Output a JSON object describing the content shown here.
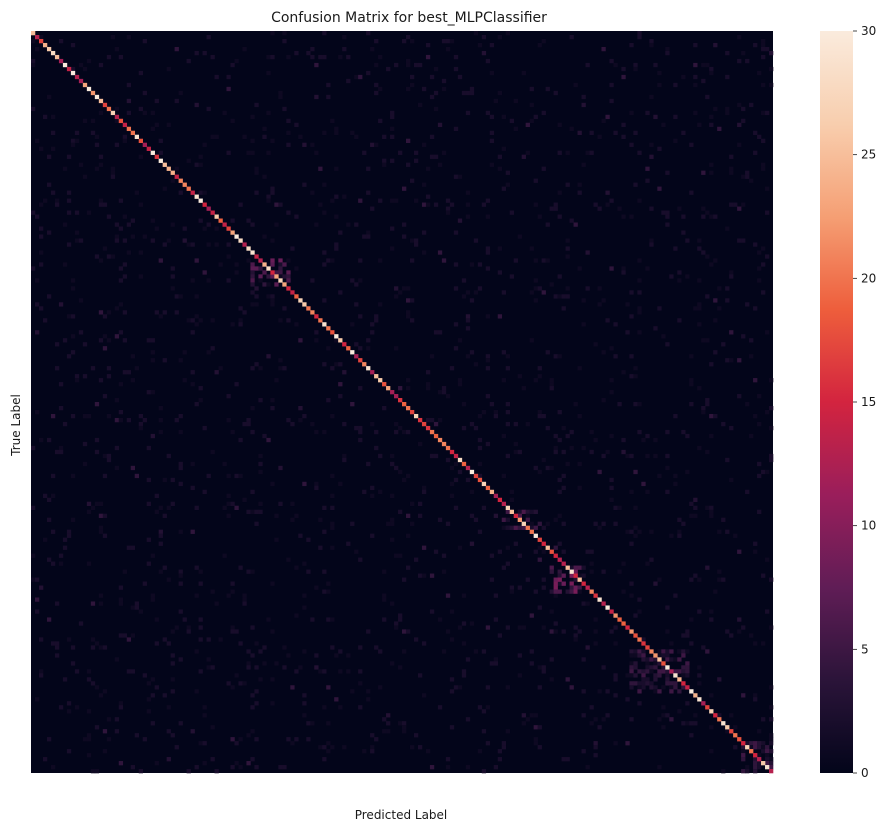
{
  "chart_data": {
    "type": "heatmap",
    "title": "Confusion Matrix for best_MLPClassifier",
    "xlabel": "Predicted Label",
    "ylabel": "True Label",
    "n_classes": 186,
    "x_ticks": [],
    "y_ticks": [],
    "colorbar": {
      "min": 0,
      "max": 30,
      "ticks": [
        "0",
        "5",
        "10",
        "15",
        "20",
        "25",
        "30"
      ],
      "colormap": "rocket",
      "stops": [
        "#03051A",
        "#2B1439",
        "#601D56",
        "#9A1E5B",
        "#D3243F",
        "#EE5E3C",
        "#F59F74",
        "#F8CEAE",
        "#FAEBDD"
      ]
    },
    "diagonal": {
      "description_values": "true-positive counts per class along the main diagonal, mostly 15-30",
      "typical_min": 12,
      "typical_max": 30
    },
    "off_diagonal_clusters": [
      {
        "row_start": 120,
        "row_end": 124,
        "col_start": 118,
        "col_end": 126,
        "max": 6
      },
      {
        "row_start": 57,
        "row_end": 63,
        "col_start": 55,
        "col_end": 64,
        "max": 8
      },
      {
        "row_start": 134,
        "row_end": 140,
        "col_start": 130,
        "col_end": 138,
        "max": 9
      },
      {
        "row_start": 155,
        "row_end": 165,
        "col_start": 150,
        "col_end": 164,
        "max": 5
      },
      {
        "row_start": 178,
        "row_end": 185,
        "col_start": 178,
        "col_end": 185,
        "max": 5
      }
    ]
  }
}
